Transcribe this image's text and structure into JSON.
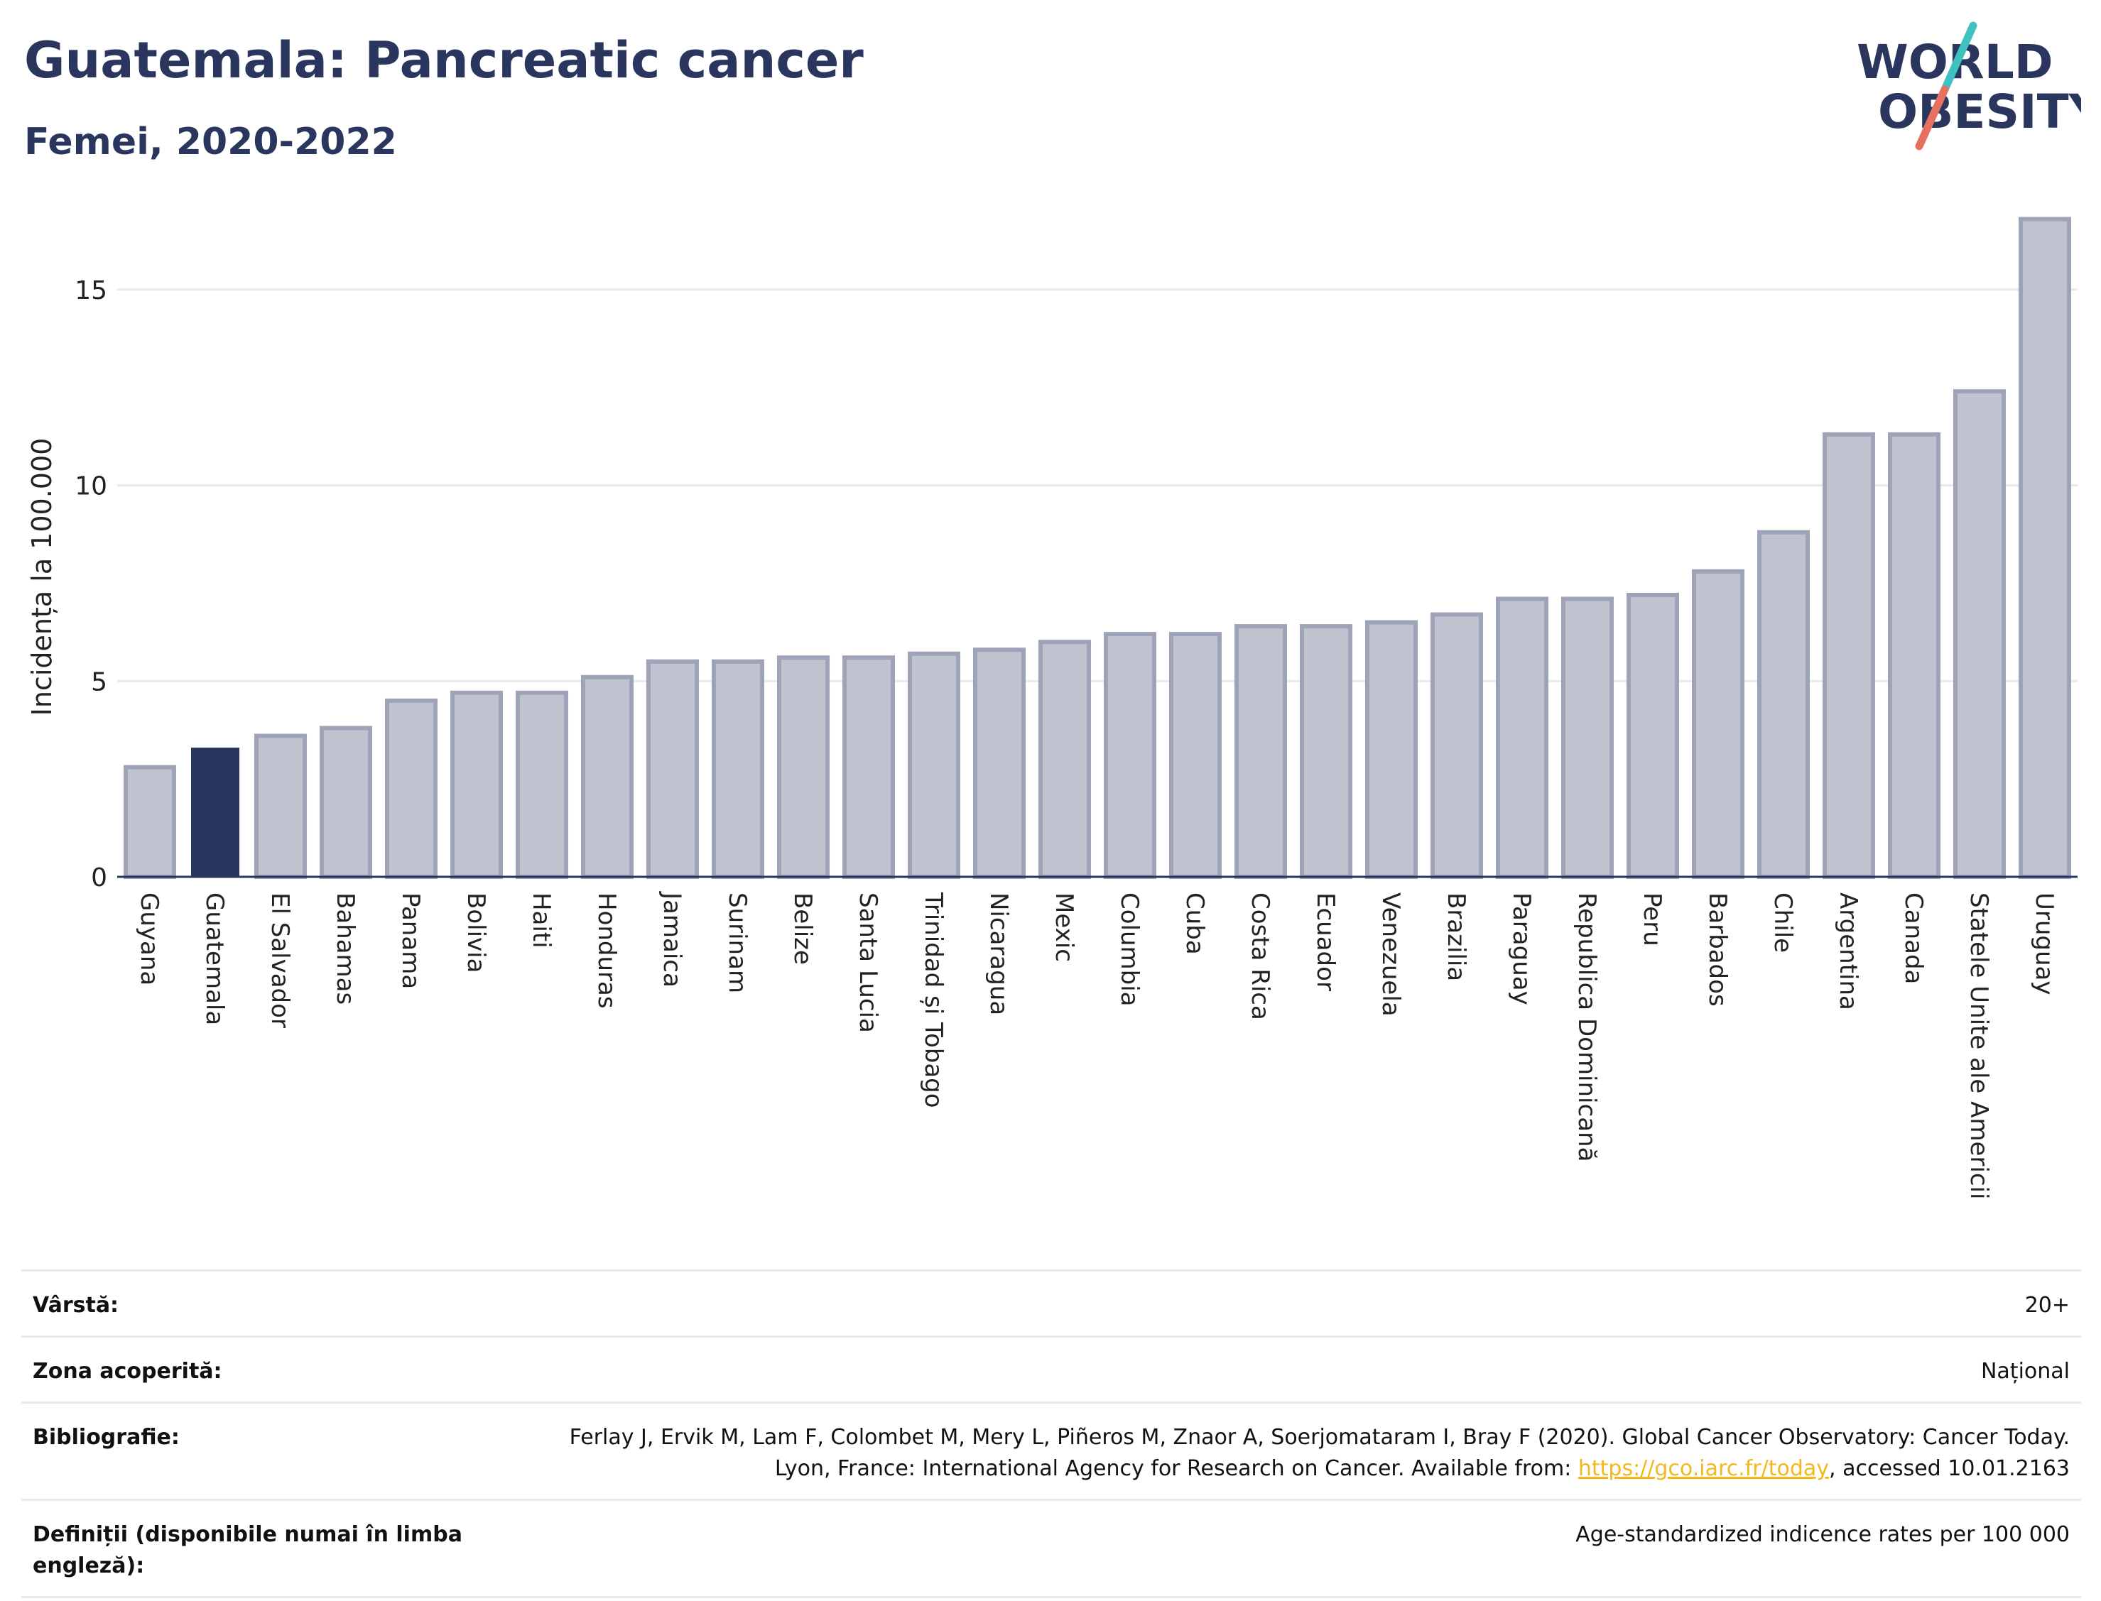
{
  "header": {
    "title": "Guatemala: Pancreatic cancer",
    "subtitle": "Femei, 2020-2022"
  },
  "logo": {
    "line1": "WORLD",
    "line2": "OBESITY"
  },
  "colors": {
    "highlight": "#2b365e",
    "bar": "#bfc3d0",
    "bar_stroke": "#9ea3b8",
    "grid": "#e6e8ee",
    "axis": "#2b365e",
    "accent_teal": "#3ec1c0",
    "accent_red": "#e8705f"
  },
  "chart_data": {
    "type": "bar",
    "ylabel": "Incidența la 100.000",
    "ylim": [
      0,
      17.5
    ],
    "yticks": [
      0,
      5,
      10,
      15
    ],
    "highlight": "Guatemala",
    "grid": true,
    "categories": [
      "Guyana",
      "Guatemala",
      "El Salvador",
      "Bahamas",
      "Panama",
      "Bolivia",
      "Haiti",
      "Honduras",
      "Jamaica",
      "Surinam",
      "Belize",
      "Santa Lucia",
      "Trinidad și Tobago",
      "Nicaragua",
      "Mexic",
      "Columbia",
      "Cuba",
      "Costa Rica",
      "Ecuador",
      "Venezuela",
      "Brazilia",
      "Paraguay",
      "Republica Dominicană",
      "Peru",
      "Barbados",
      "Chile",
      "Argentina",
      "Canada",
      "Statele Unite ale Americii",
      "Uruguay"
    ],
    "values": [
      2.8,
      3.3,
      3.6,
      3.8,
      4.5,
      4.7,
      4.7,
      5.1,
      5.5,
      5.5,
      5.6,
      5.6,
      5.7,
      5.8,
      6.0,
      6.2,
      6.2,
      6.4,
      6.4,
      6.5,
      6.7,
      7.1,
      7.1,
      7.2,
      7.8,
      8.8,
      11.3,
      11.3,
      12.4,
      16.8
    ]
  },
  "meta": {
    "age_label": "Vârstă:",
    "age_value": "20+",
    "area_label": "Zona acoperită:",
    "area_value": "Național",
    "biblio_label": "Bibliografie:",
    "biblio_text": "Ferlay J, Ervik M, Lam F, Colombet M, Mery L, Piñeros M, Znaor A, Soerjomataram I, Bray F (2020). Global Cancer Observatory: Cancer Today. Lyon, France: International Agency for Research on Cancer. Available from:",
    "biblio_link": "https://gco.iarc.fr/today",
    "biblio_suffix": ", accessed 10.01.2163",
    "def_label": "Definiții (disponibile numai în limba engleză):",
    "def_value": "Age-standardized indicence rates per 100 000"
  }
}
